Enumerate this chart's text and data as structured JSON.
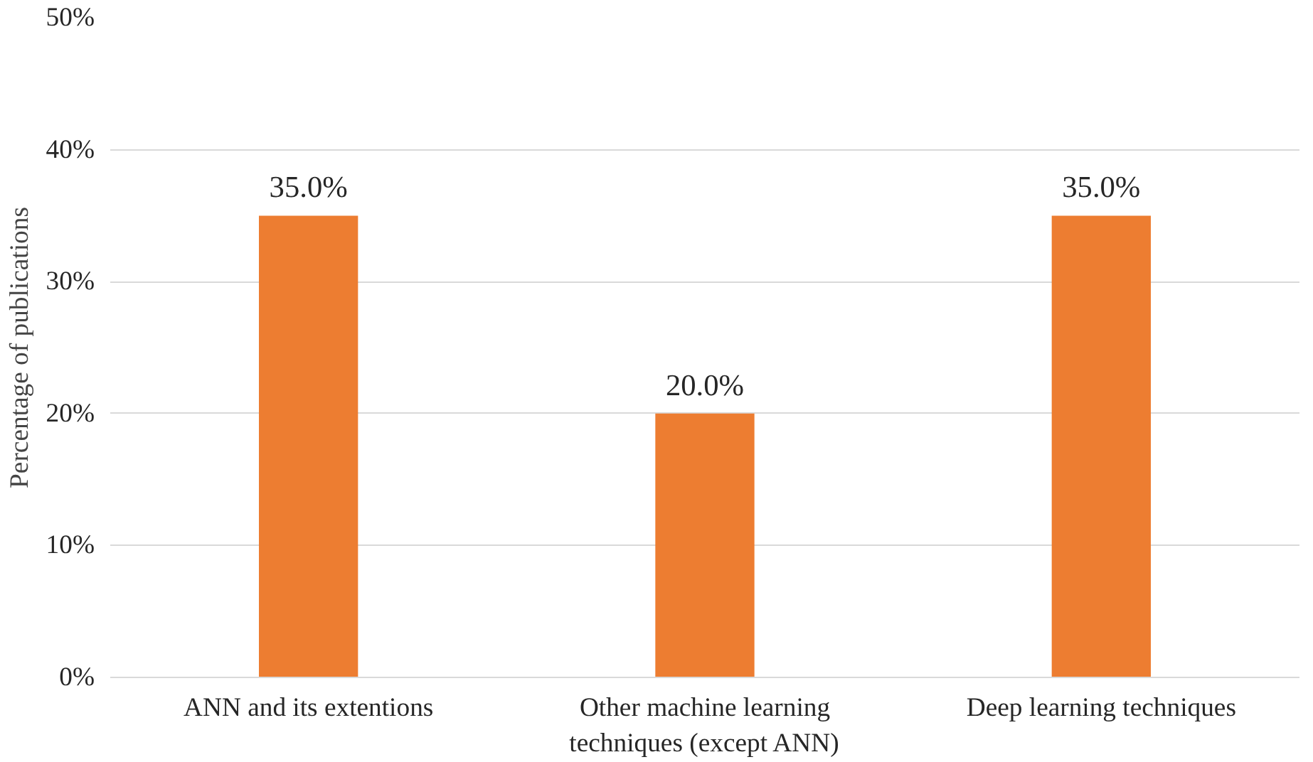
{
  "chart_data": {
    "type": "bar",
    "ylabel": "Percentage of publications",
    "categories": [
      "ANN and its extentions",
      "Other machine learning\ntechniques (except ANN)",
      "Deep learning techniques"
    ],
    "values": [
      35,
      20,
      35
    ],
    "value_labels": [
      "35.0%",
      "20.0%",
      "35.0%"
    ],
    "color": "#ed7d31",
    "ylim": [
      0,
      50
    ],
    "yticks": [
      {
        "value": 0,
        "label": "0%"
      },
      {
        "value": 10,
        "label": "10%"
      },
      {
        "value": 20,
        "label": "20%"
      },
      {
        "value": 30,
        "label": "30%"
      },
      {
        "value": 40,
        "label": "40%"
      },
      {
        "value": 50,
        "label": "50%"
      }
    ],
    "grid": "y"
  }
}
